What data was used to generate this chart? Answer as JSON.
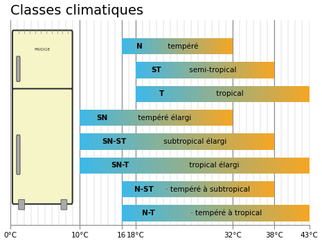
{
  "title": "Classes climatiques",
  "bars": [
    {
      "label_bold": "N",
      "label_rest": " tempéré",
      "start": 16,
      "end": 32,
      "y": 7
    },
    {
      "label_bold": "ST",
      "label_rest": " semi-tropical",
      "start": 18,
      "end": 38,
      "y": 6
    },
    {
      "label_bold": "T",
      "label_rest": " tropical",
      "start": 18,
      "end": 43,
      "y": 5
    },
    {
      "label_bold": "SN",
      "label_rest": " tempéré élargi",
      "start": 10,
      "end": 32,
      "y": 4
    },
    {
      "label_bold": "SN-ST",
      "label_rest": " subtropical élargi",
      "start": 10,
      "end": 38,
      "y": 3
    },
    {
      "label_bold": "SN-T",
      "label_rest": " tropical élargi",
      "start": 10,
      "end": 43,
      "y": 2
    },
    {
      "label_bold": "N-ST",
      "label_rest": " · tempéré à subtropical",
      "start": 16,
      "end": 38,
      "y": 1
    },
    {
      "label_bold": "N-T",
      "label_rest": " · tempéré à tropical",
      "start": 16,
      "end": 43,
      "y": 0
    }
  ],
  "xmin": 0,
  "xmax": 43,
  "xticks": [
    0,
    10,
    16,
    18,
    32,
    38,
    43
  ],
  "xtick_labels": [
    "0°C",
    "10°C",
    "16",
    "18°C",
    "32°C",
    "38°C",
    "43°C"
  ],
  "bar_height": 0.68,
  "color_cold": "#3db8e8",
  "color_hot": "#f5a623",
  "title_fontsize": 14,
  "bar_fontsize": 7.5,
  "tick_fontsize": 7.5,
  "fridge_color": "#f5f5c8",
  "fridge_border": "#333333",
  "grid_color": "#aaaaaa",
  "background_color": "#ffffff",
  "grid_lines": [
    0,
    10,
    16,
    18,
    32,
    38,
    43
  ]
}
